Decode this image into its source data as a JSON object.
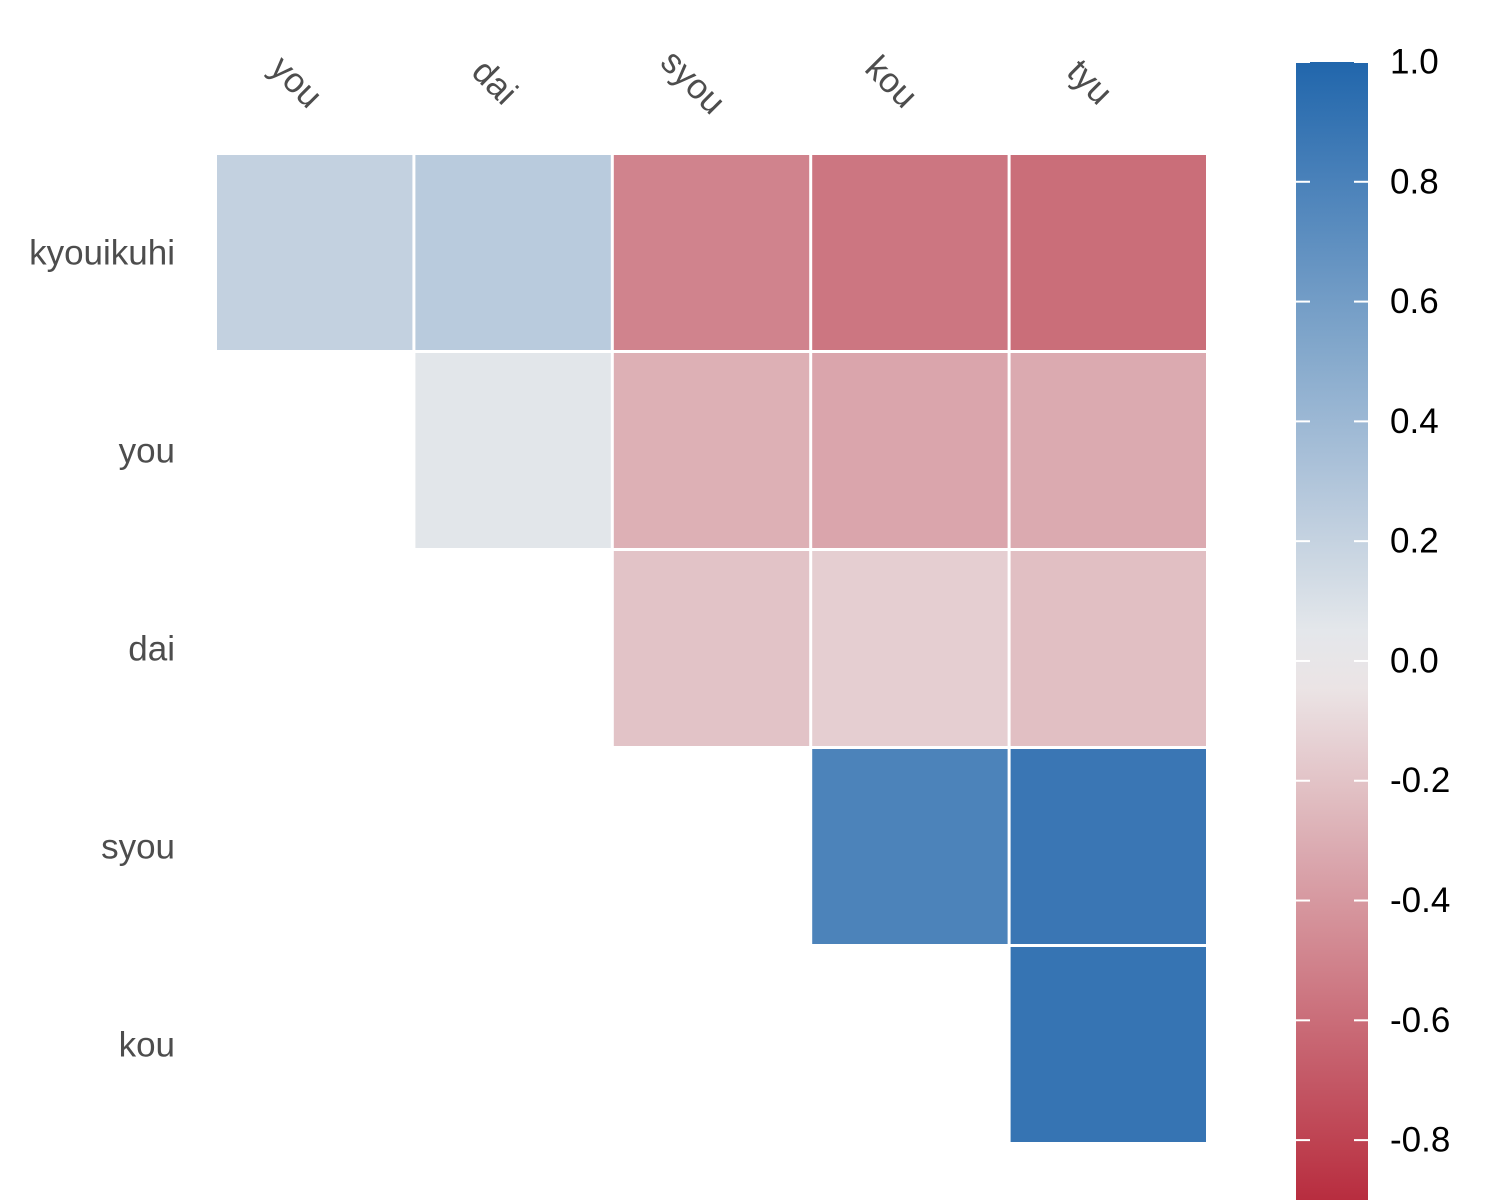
{
  "chart_data": {
    "type": "heatmap",
    "title": "",
    "xlabel": "",
    "ylabel": "",
    "x_categories": [
      "you",
      "dai",
      "syou",
      "kou",
      "tyu"
    ],
    "y_categories": [
      "kyouikuhi",
      "you",
      "dai",
      "syou",
      "kou"
    ],
    "values": [
      [
        0.21,
        0.26,
        -0.5,
        -0.56,
        -0.6
      ],
      [
        null,
        0.06,
        -0.29,
        -0.34,
        -0.32
      ],
      [
        null,
        null,
        -0.2,
        -0.15,
        -0.22
      ],
      [
        null,
        null,
        null,
        0.79,
        0.88
      ],
      [
        null,
        null,
        null,
        null,
        0.9
      ]
    ],
    "color_scale": {
      "low": "#B2182B",
      "mid": "#EEEEEE",
      "high": "#2166AC",
      "limits": [
        -0.9,
        1.0
      ],
      "ticks": [
        1.0,
        0.8,
        0.6,
        0.4,
        0.2,
        0.0,
        -0.2,
        -0.4,
        -0.6,
        -0.8
      ],
      "tick_labels": [
        "1.0",
        "0.8",
        "0.6",
        "0.4",
        "0.2",
        "0.0",
        "-0.2",
        "-0.4",
        "-0.6",
        "-0.8"
      ]
    },
    "legend_placement": "right",
    "grid": false
  }
}
